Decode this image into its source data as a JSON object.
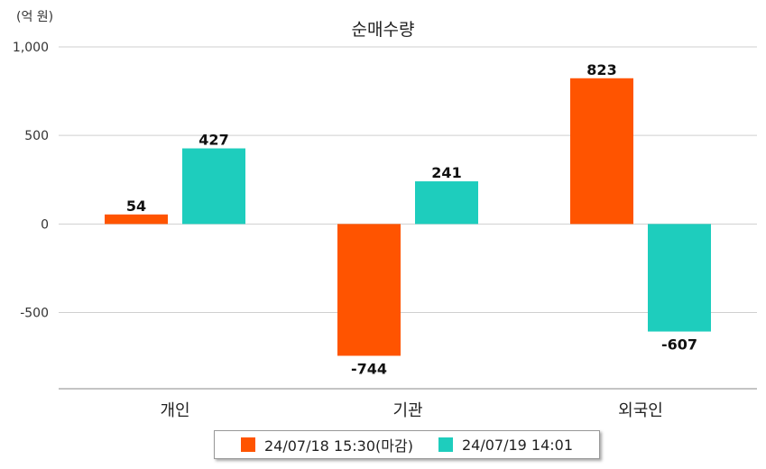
{
  "chart_data": {
    "type": "bar",
    "title": "순매수량",
    "unit_label": "(억 원)",
    "categories": [
      "개인",
      "기관",
      "외국인"
    ],
    "series": [
      {
        "name": "24/07/18 15:30(마감)",
        "color": "#FF5400",
        "values": [
          54,
          -744,
          823
        ]
      },
      {
        "name": "24/07/19 14:01",
        "color": "#1ECDBD",
        "values": [
          427,
          241,
          -607
        ]
      }
    ],
    "y_ticks": [
      1000,
      500,
      0,
      -500
    ],
    "y_tick_labels": [
      "1,000",
      "500",
      "0",
      "-500"
    ],
    "ylim": [
      -930,
      1000
    ],
    "grid": true,
    "legend_position": "bottom"
  }
}
